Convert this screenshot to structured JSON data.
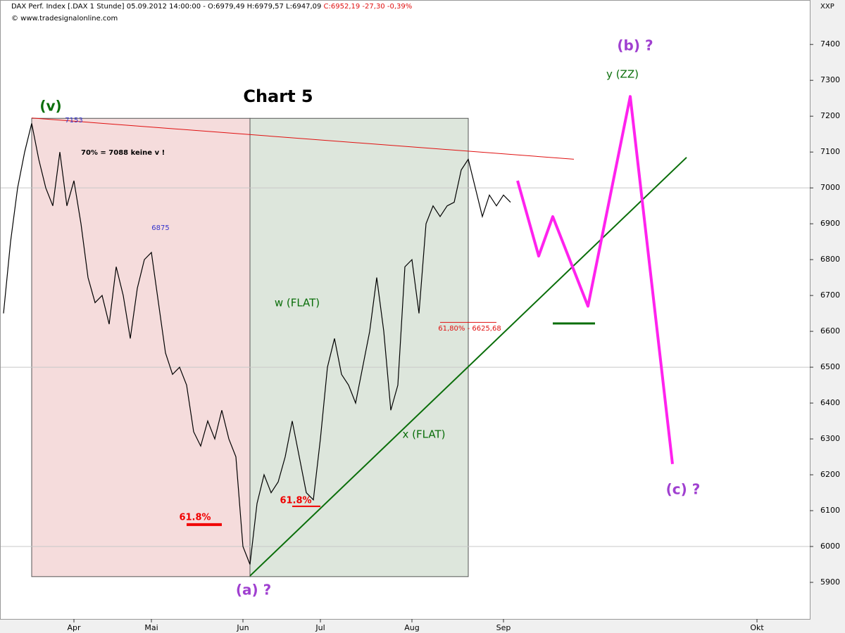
{
  "chart_data": {
    "type": "line",
    "header": "DAX Perf. Index [.DAX  1 Stunde] 05.09.2012 14:00:00 - O:6979,49 H:6979,57 L:6947,09",
    "header_close": "C:6952,19 -27,30 -0,39%",
    "source": "© www.tradesignalonline.com",
    "corner": "XXP",
    "categories": [
      null,
      null,
      null,
      null,
      null,
      null,
      null,
      null,
      null,
      null,
      "Apr",
      null,
      null,
      null,
      null,
      null,
      null,
      null,
      null,
      null,
      null,
      "Mai",
      null,
      null,
      null,
      null,
      null,
      null,
      null,
      null,
      null,
      null,
      null,
      null,
      "Jun",
      null,
      null,
      null,
      null,
      null,
      null,
      null,
      null,
      null,
      null,
      "Jul",
      null,
      null,
      null,
      null,
      null,
      null,
      null,
      null,
      null,
      null,
      null,
      null,
      "Aug",
      null,
      null,
      null,
      null,
      null,
      null,
      null,
      null,
      null,
      null,
      null,
      null,
      "Sep",
      null,
      null,
      null,
      null,
      null,
      null,
      null,
      null,
      null,
      null,
      null,
      null,
      null,
      null,
      null,
      null,
      null,
      null,
      null,
      null,
      null,
      null,
      null,
      null,
      null,
      null,
      null,
      null,
      null,
      null,
      null,
      null,
      null,
      null,
      null,
      "Okt",
      null,
      null,
      null
    ],
    "series": [
      {
        "color": "#000000",
        "values": [
          6650,
          6850,
          7000,
          7100,
          7180,
          7080,
          7000,
          6950,
          7100,
          6950,
          7020,
          6900,
          6750,
          6680,
          6700,
          6620,
          6780,
          6700,
          6580,
          6720,
          6800,
          6820,
          6680,
          6540,
          6480,
          6500,
          6450,
          6320,
          6280,
          6350,
          6300,
          6380,
          6300,
          6250,
          6000,
          5950,
          6120,
          6200,
          6150,
          6180,
          6250,
          6350,
          6250,
          6150,
          6130,
          6300,
          6500,
          6580,
          6480,
          6450,
          6400,
          6500,
          6600,
          6750,
          6600,
          6380,
          6450,
          6780,
          6800,
          6650,
          6900,
          6950,
          6920,
          6950,
          6960,
          7050,
          7080,
          7000,
          6920,
          6980,
          6950,
          6980,
          6960,
          null,
          null,
          null,
          null,
          null,
          null,
          null,
          null,
          null,
          null,
          null,
          null,
          null,
          null,
          null,
          null,
          null,
          null,
          null,
          null,
          null,
          null,
          null,
          null,
          null,
          null,
          null,
          null,
          null,
          null,
          null,
          null,
          null,
          null,
          null,
          null,
          null,
          null
        ]
      }
    ],
    "ylim": [
      5798,
      7524
    ],
    "yticks": [
      5900,
      6000,
      6100,
      6200,
      6300,
      6400,
      6500,
      6600,
      6700,
      6800,
      6900,
      7000,
      7100,
      7200,
      7300,
      7400
    ],
    "grid_values": [
      6000,
      6500,
      7000
    ],
    "regions": [
      {
        "from": 4,
        "to": 35,
        "top": 7194,
        "bottom": 5916,
        "color": "#f5dcdc"
      },
      {
        "from": 35,
        "to": 66,
        "top": 7194,
        "bottom": 5916,
        "color": "#dde6dc"
      }
    ],
    "lines": [
      {
        "color": "#e01010",
        "width": 1,
        "points": [
          [
            4,
            7195
          ],
          [
            81,
            7080
          ]
        ]
      },
      {
        "color": "#0a6e0a",
        "width": 2,
        "points": [
          [
            35,
            5918
          ],
          [
            97,
            7085
          ]
        ]
      },
      {
        "color": "#ff22ee",
        "width": 4,
        "points": [
          [
            73,
            7020
          ],
          [
            76,
            6810
          ],
          [
            78,
            6920
          ],
          [
            83,
            6670
          ],
          [
            89,
            7255
          ],
          [
            95,
            6230
          ]
        ]
      },
      {
        "color": "#0a6e0a",
        "width": 3,
        "points": [
          [
            78,
            6622
          ],
          [
            84,
            6622
          ]
        ]
      },
      {
        "color": "#f00000",
        "width": 4,
        "points": [
          [
            26,
            6061
          ],
          [
            31,
            6061
          ]
        ]
      },
      {
        "color": "#f00000",
        "width": 2,
        "points": [
          [
            41,
            6112
          ],
          [
            45,
            6112
          ]
        ]
      },
      {
        "color": "#e01010",
        "width": 1,
        "points": [
          [
            62,
            6625
          ],
          [
            70,
            6625
          ]
        ]
      }
    ],
    "annotations": [
      "(v)",
      "7153",
      "70% = 7088 keine v !",
      "6875",
      "Chart 5",
      "w (FLAT)",
      "x (FLAT)",
      "61,80% - 6625,68",
      "(b) ?",
      "y (ZZ)",
      "(c) ?",
      "(a) ?",
      "61.8%",
      "61.8%"
    ]
  }
}
